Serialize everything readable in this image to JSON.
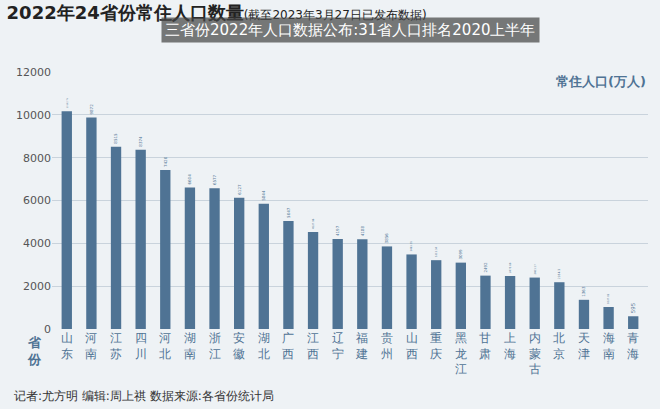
{
  "chart_data": {
    "type": "bar",
    "title": "2022年24省份常住人口数量(截至2023年3月27日已发布数据)",
    "annotations": [
      "三省份2022年人口数据公布:31省人口排名2020上半年"
    ],
    "ylabel": "常住人口(万人)",
    "xlabel": "省份",
    "source": "记者:尤方明 编辑:周上祺 数据来源:各省份统计局",
    "categories": [
      "山东",
      "河南",
      "江苏",
      "四川",
      "河北",
      "湖南",
      "浙江",
      "安徽",
      "湖北",
      "广西",
      "江西",
      "辽宁",
      "福建",
      "贵州",
      "山西",
      "重庆",
      "黑龙江",
      "甘肃",
      "上海",
      "内蒙古",
      "北京",
      "天津",
      "海南",
      "青海"
    ],
    "values": [
      10162.79,
      9872,
      8515,
      8374,
      7420,
      6604,
      6577,
      6127,
      5844,
      5047,
      4527.98,
      4197,
      4188,
      3856,
      3481.35,
      3213.34,
      3099,
      2492,
      2475.89,
      2401.17,
      2184.3,
      1363,
      1027.02,
      595
    ],
    "color": "#4f7394",
    "ylim": [
      0,
      12000
    ],
    "yticks": [
      0,
      2000,
      4000,
      6000,
      8000,
      10000,
      12000
    ],
    "grid": true,
    "data_labels": true
  }
}
